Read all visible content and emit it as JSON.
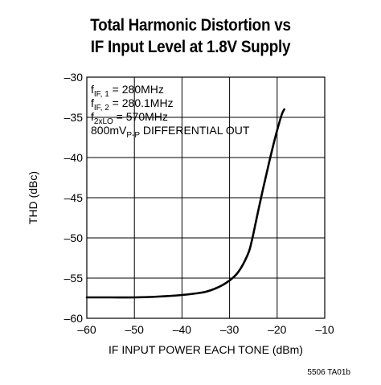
{
  "chart_data": {
    "type": "line",
    "title_line1": "Total Harmonic Distortion vs",
    "title_line2": "IF Input Level at 1.8V Supply",
    "xlabel": "IF INPUT POWER EACH TONE (dBm)",
    "ylabel": "THD (dBc)",
    "xlim": [
      -60,
      -10
    ],
    "ylim": [
      -60,
      -30
    ],
    "xticks": [
      -60,
      -50,
      -40,
      -30,
      -20,
      -10
    ],
    "yticks": [
      -30,
      -35,
      -40,
      -45,
      -50,
      -55,
      -60
    ],
    "xtick_labels": [
      "–60",
      "–50",
      "–40",
      "–30",
      "–20",
      "–10"
    ],
    "ytick_labels": [
      "–30",
      "–35",
      "–40",
      "–45",
      "–50",
      "–55",
      "–60"
    ],
    "grid": true,
    "series": [
      {
        "color": "#000000",
        "x": [
          -60,
          -55,
          -50,
          -45,
          -40,
          -37,
          -35,
          -33,
          -31,
          -29,
          -28,
          -27,
          -26,
          -25.5,
          -25,
          -24,
          -23,
          -22,
          -21,
          -20,
          -19,
          -18.5
        ],
        "y": [
          -57.4,
          -57.4,
          -57.4,
          -57.3,
          -57.1,
          -56.9,
          -56.7,
          -56.3,
          -55.7,
          -54.8,
          -54.1,
          -53.1,
          -51.8,
          -50.8,
          -49.5,
          -46.7,
          -44.0,
          -41.4,
          -38.9,
          -36.6,
          -34.6,
          -34.0
        ]
      }
    ],
    "annotations": [
      {
        "base": "f",
        "sub": "IF, 1",
        "rest": " = 280MHz"
      },
      {
        "base": "f",
        "sub": "IF, 2",
        "rest": " = 280.1MHz"
      },
      {
        "base": "f",
        "sub": "2xLO",
        "rest": " = 570MHz"
      },
      {
        "base": "800mV",
        "sub": "P-P",
        "rest": " DIFFERENTIAL OUT"
      }
    ],
    "footnote": "5506 TA01b"
  }
}
